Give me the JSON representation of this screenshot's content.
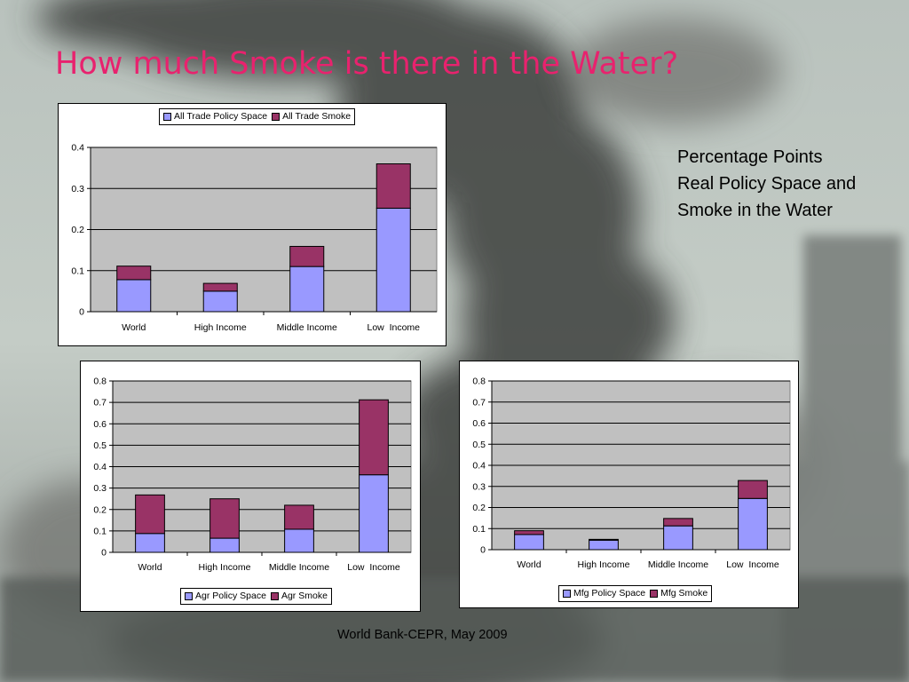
{
  "slide": {
    "title": "How much Smoke is there in the Water?",
    "note_lines": [
      "Percentage Points",
      "Real Policy Space and",
      "Smoke in the Water"
    ],
    "footer": "World Bank-CEPR, May 2009"
  },
  "colors": {
    "policy": "#9999ff",
    "smoke": "#993366",
    "plot_bg": "#c0c0c0",
    "title": "#e8226e"
  },
  "chart_data": [
    {
      "type": "bar",
      "stacked": true,
      "categories": [
        "World",
        "High Income",
        "Middle Income",
        "Low  Income"
      ],
      "series": [
        {
          "name": "All Trade Policy Space",
          "values": [
            0.078,
            0.05,
            0.11,
            0.252
          ]
        },
        {
          "name": "All Trade Smoke",
          "values": [
            0.033,
            0.019,
            0.049,
            0.108
          ]
        }
      ],
      "ylim": [
        0,
        0.4
      ],
      "yticks": [
        "0",
        "0.1",
        "0.2",
        "0.3",
        "0.4"
      ],
      "grid": true,
      "legend": "top"
    },
    {
      "type": "bar",
      "stacked": true,
      "categories": [
        "World",
        "High Income",
        "Middle Income",
        "Low  Income"
      ],
      "series": [
        {
          "name": "Agr Policy Space",
          "values": [
            0.088,
            0.066,
            0.108,
            0.362
          ]
        },
        {
          "name": "Agr Smoke",
          "values": [
            0.18,
            0.184,
            0.112,
            0.35
          ]
        }
      ],
      "ylim": [
        0,
        0.8
      ],
      "yticks": [
        "0",
        "0.1",
        "0.2",
        "0.3",
        "0.4",
        "0.5",
        "0.6",
        "0.7",
        "0.8"
      ],
      "grid": true,
      "legend": "bottom"
    },
    {
      "type": "bar",
      "stacked": true,
      "categories": [
        "World",
        "High Income",
        "Middle Income",
        "Low  Income"
      ],
      "series": [
        {
          "name": "Mfg Policy Space",
          "values": [
            0.072,
            0.045,
            0.113,
            0.243
          ]
        },
        {
          "name": "Mfg Smoke",
          "values": [
            0.018,
            0.004,
            0.035,
            0.085
          ]
        }
      ],
      "ylim": [
        0,
        0.8
      ],
      "yticks": [
        "0",
        "0.1",
        "0.2",
        "0.3",
        "0.4",
        "0.5",
        "0.6",
        "0.7",
        "0.8"
      ],
      "grid": true,
      "legend": "bottom"
    }
  ]
}
